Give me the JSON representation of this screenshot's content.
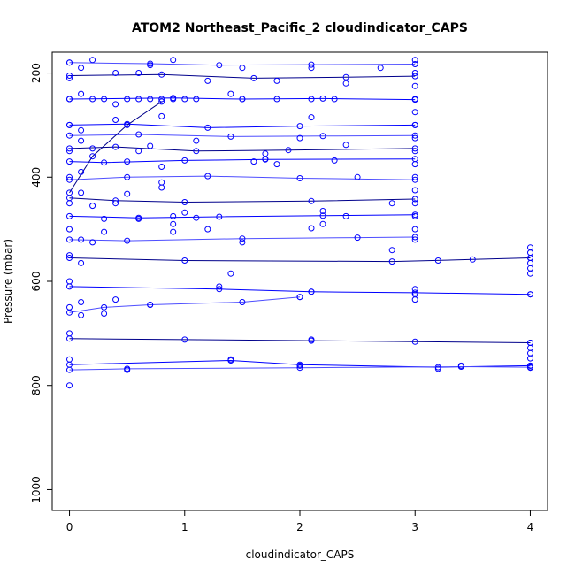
{
  "chart_data": {
    "type": "line",
    "title": "ATOM2 Northeast_Pacific_2 cloudindicator_CAPS",
    "xlabel": "cloudindicator_CAPS",
    "ylabel": "Pressure (mbar)",
    "xlim": [
      -0.15,
      4.15
    ],
    "ylim": [
      1040,
      160
    ],
    "y_reversed": true,
    "x_ticks": [
      0,
      1,
      2,
      3,
      4
    ],
    "y_ticks": [
      200,
      400,
      600,
      800,
      1000
    ],
    "grid": false,
    "legend": "none",
    "colors": {
      "profile_primary": "#0000ff",
      "profile_secondary": "#4d4dff",
      "profile_dark": "#00008b"
    },
    "series": [
      {
        "x": [
          0,
          0.9,
          1.5,
          2.2,
          3.0
        ],
        "y": [
          250,
          248,
          250,
          249,
          251
        ]
      },
      {
        "x": [
          0,
          0.7,
          1.3,
          2.1,
          3.0
        ],
        "y": [
          180,
          182,
          185,
          184,
          183
        ]
      },
      {
        "x": [
          0,
          0.8,
          1.6,
          2.4,
          3.0
        ],
        "y": [
          205,
          203,
          210,
          208,
          206
        ]
      },
      {
        "x": [
          0,
          0.5,
          1.2,
          2.0,
          3.0
        ],
        "y": [
          300,
          298,
          305,
          302,
          300
        ]
      },
      {
        "x": [
          0,
          0.6,
          1.4,
          2.2,
          3.0
        ],
        "y": [
          320,
          318,
          322,
          321,
          320
        ]
      },
      {
        "x": [
          0,
          0.4,
          1.1,
          1.9,
          3.0
        ],
        "y": [
          345,
          342,
          350,
          348,
          345
        ]
      },
      {
        "x": [
          0,
          0.3,
          1.0,
          1.7,
          3.0
        ],
        "y": [
          370,
          372,
          368,
          366,
          365
        ]
      },
      {
        "x": [
          0,
          0.5,
          1.2,
          2.0,
          3.0
        ],
        "y": [
          405,
          400,
          398,
          402,
          405
        ]
      },
      {
        "x": [
          0,
          0.4,
          1.0,
          2.1,
          3.0
        ],
        "y": [
          440,
          445,
          448,
          446,
          442
        ]
      },
      {
        "x": [
          0,
          0.6,
          1.3,
          2.2,
          3.0
        ],
        "y": [
          475,
          478,
          476,
          474,
          472
        ]
      },
      {
        "x": [
          0,
          0.5,
          1.5,
          2.5,
          3.0
        ],
        "y": [
          520,
          522,
          518,
          516,
          515
        ]
      },
      {
        "x": [
          0,
          1.0,
          2.8,
          3.5,
          4.0
        ],
        "y": [
          555,
          560,
          562,
          558,
          555
        ]
      },
      {
        "x": [
          0,
          1.3,
          2.1,
          3.0,
          4.0
        ],
        "y": [
          610,
          615,
          620,
          622,
          625
        ]
      },
      {
        "x": [
          0,
          0.3,
          0.7,
          1.5,
          2.0
        ],
        "y": [
          660,
          650,
          645,
          640,
          630
        ]
      },
      {
        "x": [
          0,
          1.0,
          2.1,
          3.0,
          4.0
        ],
        "y": [
          710,
          712,
          714,
          716,
          718
        ]
      },
      {
        "x": [
          0,
          1.4,
          2.0,
          3.2,
          4.0
        ],
        "y": [
          760,
          752,
          760,
          765,
          762
        ]
      },
      {
        "x": [
          0,
          0.5,
          2.0,
          3.4,
          4.0
        ],
        "y": [
          770,
          768,
          766,
          764,
          765
        ]
      },
      {
        "x": [
          0,
          0.2,
          0.5,
          0.8
        ],
        "y": [
          430,
          360,
          300,
          255
        ]
      }
    ],
    "points": [
      {
        "x": 0,
        "y": 180
      },
      {
        "x": 0,
        "y": 210
      },
      {
        "x": 0,
        "y": 250
      },
      {
        "x": 0,
        "y": 300
      },
      {
        "x": 0,
        "y": 350
      },
      {
        "x": 0,
        "y": 400
      },
      {
        "x": 0,
        "y": 450
      },
      {
        "x": 0,
        "y": 500
      },
      {
        "x": 0,
        "y": 550
      },
      {
        "x": 0,
        "y": 600
      },
      {
        "x": 0,
        "y": 650
      },
      {
        "x": 0,
        "y": 700
      },
      {
        "x": 0,
        "y": 750
      },
      {
        "x": 0,
        "y": 800
      },
      {
        "x": 0.1,
        "y": 190
      },
      {
        "x": 0.1,
        "y": 240
      },
      {
        "x": 0.1,
        "y": 310
      },
      {
        "x": 0.1,
        "y": 330
      },
      {
        "x": 0.1,
        "y": 390
      },
      {
        "x": 0.1,
        "y": 430
      },
      {
        "x": 0.1,
        "y": 520
      },
      {
        "x": 0.1,
        "y": 565
      },
      {
        "x": 0.1,
        "y": 640
      },
      {
        "x": 0.1,
        "y": 665
      },
      {
        "x": 0.2,
        "y": 175
      },
      {
        "x": 0.2,
        "y": 250
      },
      {
        "x": 0.2,
        "y": 345
      },
      {
        "x": 0.2,
        "y": 455
      },
      {
        "x": 0.2,
        "y": 525
      },
      {
        "x": 0.3,
        "y": 250
      },
      {
        "x": 0.3,
        "y": 480
      },
      {
        "x": 0.3,
        "y": 505
      },
      {
        "x": 0.3,
        "y": 662
      },
      {
        "x": 0.4,
        "y": 200
      },
      {
        "x": 0.4,
        "y": 260
      },
      {
        "x": 0.4,
        "y": 290
      },
      {
        "x": 0.4,
        "y": 450
      },
      {
        "x": 0.4,
        "y": 635
      },
      {
        "x": 0.5,
        "y": 250
      },
      {
        "x": 0.5,
        "y": 370
      },
      {
        "x": 0.5,
        "y": 432
      },
      {
        "x": 0.5,
        "y": 770
      },
      {
        "x": 0.6,
        "y": 200
      },
      {
        "x": 0.6,
        "y": 250
      },
      {
        "x": 0.6,
        "y": 350
      },
      {
        "x": 0.6,
        "y": 480
      },
      {
        "x": 0.7,
        "y": 185
      },
      {
        "x": 0.7,
        "y": 250
      },
      {
        "x": 0.7,
        "y": 340
      },
      {
        "x": 0.7,
        "y": 645
      },
      {
        "x": 0.8,
        "y": 250
      },
      {
        "x": 0.8,
        "y": 283
      },
      {
        "x": 0.8,
        "y": 380
      },
      {
        "x": 0.8,
        "y": 410
      },
      {
        "x": 0.8,
        "y": 420
      },
      {
        "x": 0.9,
        "y": 175
      },
      {
        "x": 0.9,
        "y": 250
      },
      {
        "x": 0.9,
        "y": 475
      },
      {
        "x": 0.9,
        "y": 490
      },
      {
        "x": 0.9,
        "y": 505
      },
      {
        "x": 1.0,
        "y": 250
      },
      {
        "x": 1.0,
        "y": 468
      },
      {
        "x": 1.1,
        "y": 250
      },
      {
        "x": 1.1,
        "y": 330
      },
      {
        "x": 1.1,
        "y": 478
      },
      {
        "x": 1.2,
        "y": 215
      },
      {
        "x": 1.2,
        "y": 500
      },
      {
        "x": 1.3,
        "y": 610
      },
      {
        "x": 1.4,
        "y": 240
      },
      {
        "x": 1.4,
        "y": 585
      },
      {
        "x": 1.4,
        "y": 750
      },
      {
        "x": 1.5,
        "y": 190
      },
      {
        "x": 1.5,
        "y": 250
      },
      {
        "x": 1.5,
        "y": 525
      },
      {
        "x": 1.6,
        "y": 370
      },
      {
        "x": 1.7,
        "y": 355
      },
      {
        "x": 1.7,
        "y": 365
      },
      {
        "x": 1.8,
        "y": 215
      },
      {
        "x": 1.8,
        "y": 250
      },
      {
        "x": 1.8,
        "y": 375
      },
      {
        "x": 2.0,
        "y": 325
      },
      {
        "x": 2.0,
        "y": 630
      },
      {
        "x": 2.0,
        "y": 762
      },
      {
        "x": 2.1,
        "y": 190
      },
      {
        "x": 2.1,
        "y": 250
      },
      {
        "x": 2.1,
        "y": 285
      },
      {
        "x": 2.1,
        "y": 620
      },
      {
        "x": 2.1,
        "y": 498
      },
      {
        "x": 2.1,
        "y": 712
      },
      {
        "x": 2.2,
        "y": 465
      },
      {
        "x": 2.2,
        "y": 490
      },
      {
        "x": 2.3,
        "y": 250
      },
      {
        "x": 2.3,
        "y": 368
      },
      {
        "x": 2.4,
        "y": 220
      },
      {
        "x": 2.4,
        "y": 338
      },
      {
        "x": 2.4,
        "y": 475
      },
      {
        "x": 2.5,
        "y": 400
      },
      {
        "x": 2.7,
        "y": 190
      },
      {
        "x": 2.8,
        "y": 450
      },
      {
        "x": 2.8,
        "y": 540
      },
      {
        "x": 3.2,
        "y": 560
      },
      {
        "x": 3.2,
        "y": 768
      },
      {
        "x": 3.4,
        "y": 762
      },
      {
        "x": 3.0,
        "y": 175
      },
      {
        "x": 3.0,
        "y": 200
      },
      {
        "x": 3.0,
        "y": 225
      },
      {
        "x": 3.0,
        "y": 250
      },
      {
        "x": 3.0,
        "y": 275
      },
      {
        "x": 3.0,
        "y": 300
      },
      {
        "x": 3.0,
        "y": 325
      },
      {
        "x": 3.0,
        "y": 350
      },
      {
        "x": 3.0,
        "y": 375
      },
      {
        "x": 3.0,
        "y": 400
      },
      {
        "x": 3.0,
        "y": 425
      },
      {
        "x": 3.0,
        "y": 450
      },
      {
        "x": 3.0,
        "y": 475
      },
      {
        "x": 3.0,
        "y": 500
      },
      {
        "x": 3.0,
        "y": 520
      },
      {
        "x": 3.0,
        "y": 615
      },
      {
        "x": 3.0,
        "y": 625
      },
      {
        "x": 3.0,
        "y": 635
      },
      {
        "x": 4.0,
        "y": 535
      },
      {
        "x": 4.0,
        "y": 545
      },
      {
        "x": 4.0,
        "y": 555
      },
      {
        "x": 4.0,
        "y": 565
      },
      {
        "x": 4.0,
        "y": 575
      },
      {
        "x": 4.0,
        "y": 585
      },
      {
        "x": 4.0,
        "y": 625
      },
      {
        "x": 4.0,
        "y": 718
      },
      {
        "x": 4.0,
        "y": 728
      },
      {
        "x": 4.0,
        "y": 738
      },
      {
        "x": 4.0,
        "y": 748
      },
      {
        "x": 4.0,
        "y": 762
      },
      {
        "x": 4.0,
        "y": 766
      }
    ]
  }
}
